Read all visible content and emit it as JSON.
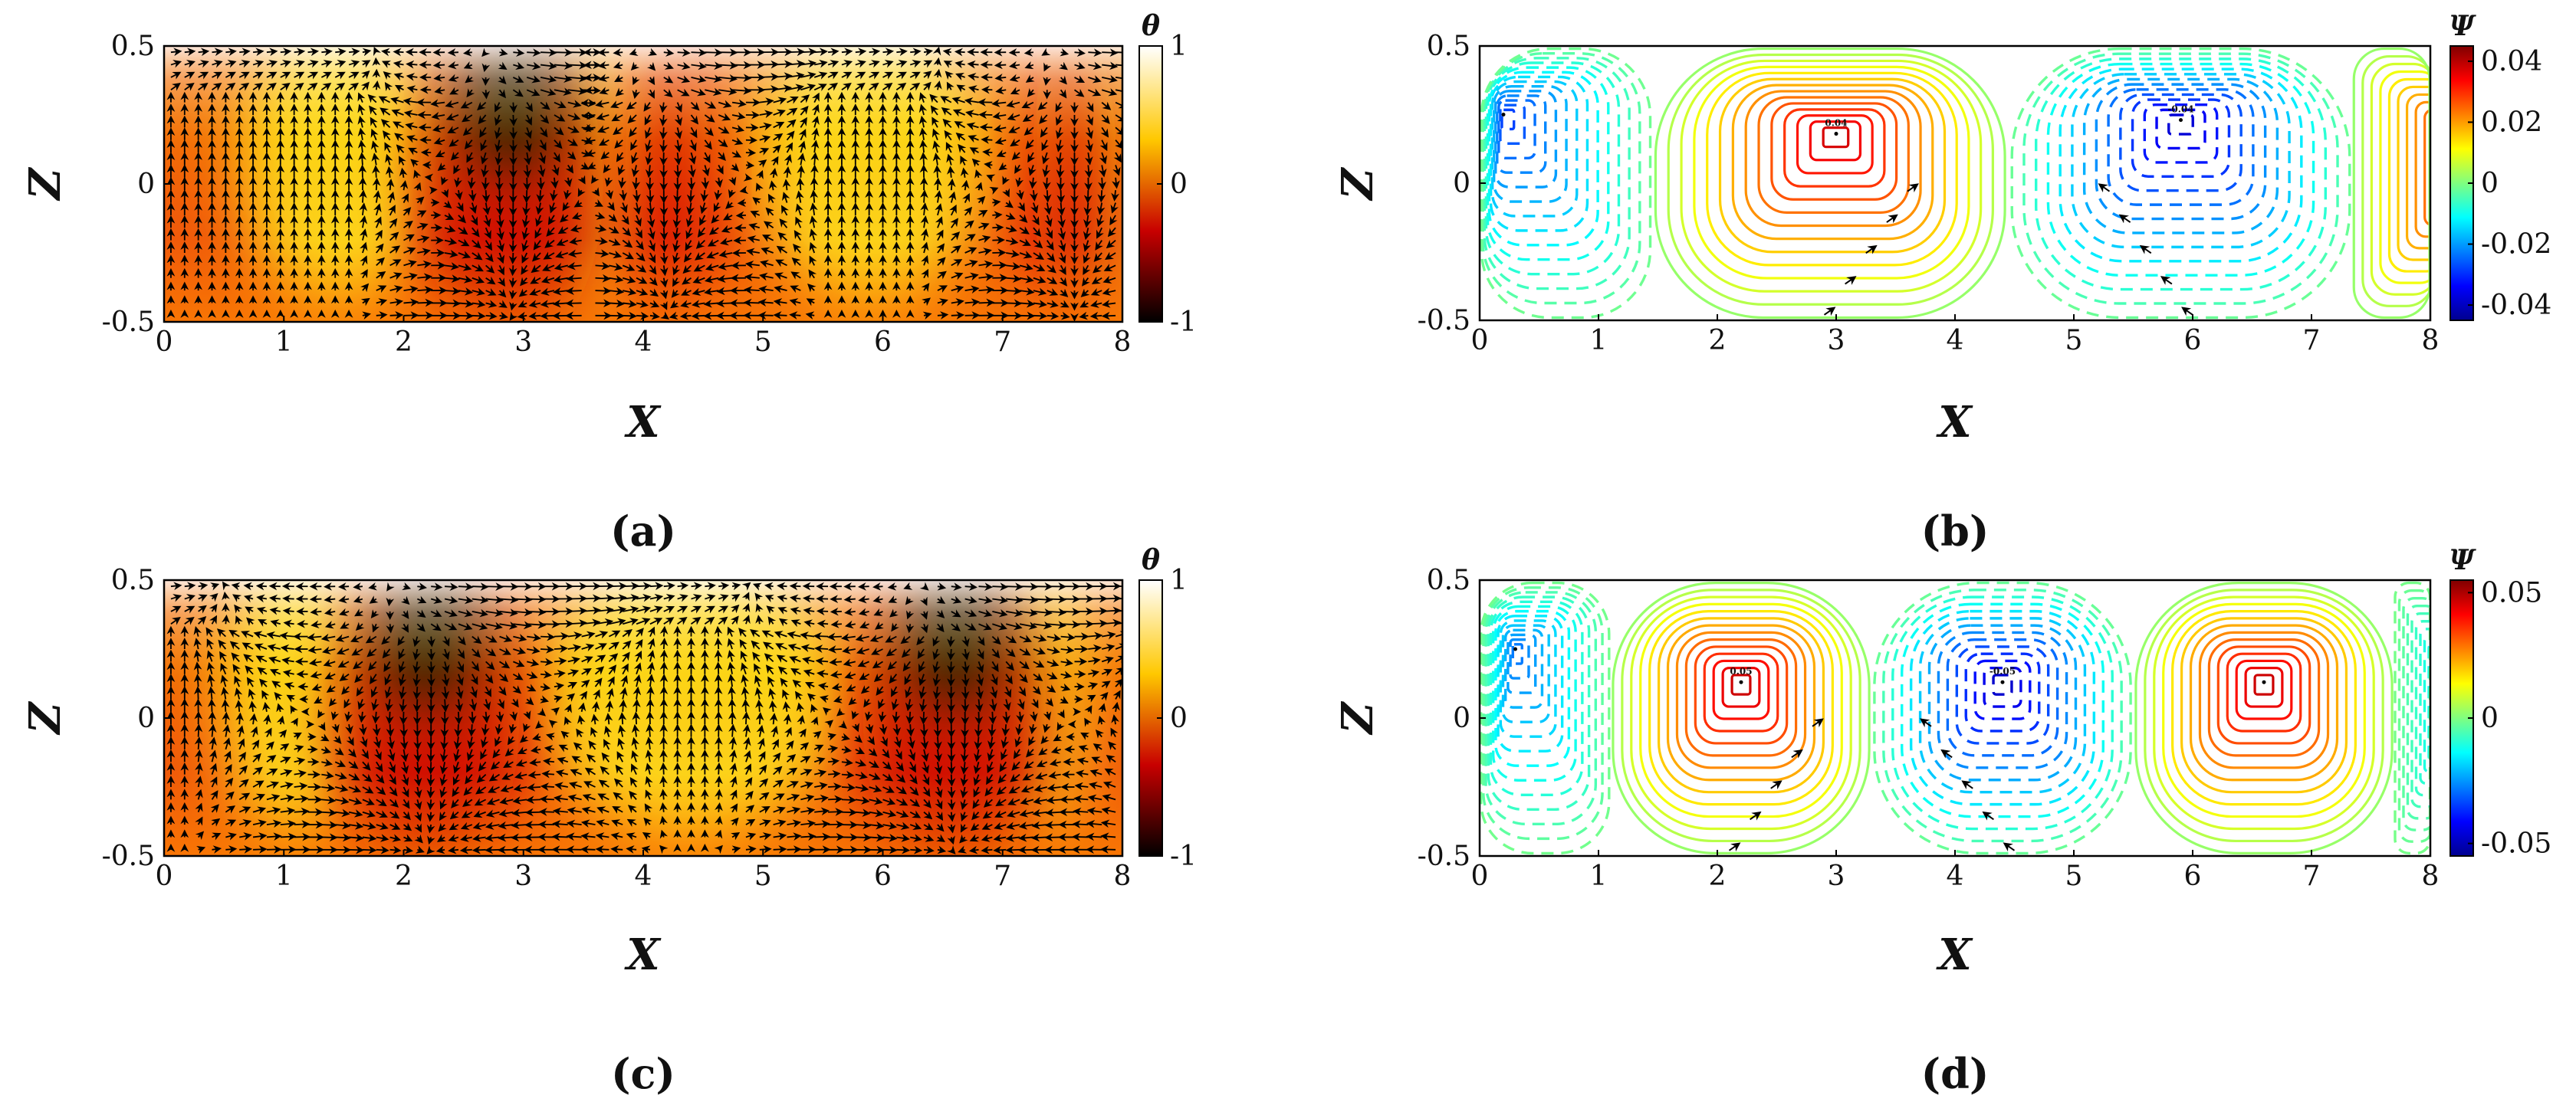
{
  "chart_data": [
    {
      "id": "a",
      "type": "heatmap",
      "field": "temperature_with_velocity_vectors",
      "panel_label": "(a)",
      "xlabel": "X",
      "ylabel": "Z",
      "xlim": [
        0,
        8
      ],
      "ylim": [
        -0.5,
        0.5
      ],
      "x_ticks": [
        "0",
        "1",
        "2",
        "3",
        "4",
        "5",
        "6",
        "7",
        "8"
      ],
      "y_ticks": [
        "0.5",
        "0",
        "-0.5"
      ],
      "colorbar": {
        "title": "θ",
        "range": [
          -1,
          1
        ],
        "ticks": [
          "1",
          "0",
          "-1"
        ],
        "colormap": "hot"
      },
      "cold_plume_centers_x": [
        2.9
      ],
      "secondary_plume_centers_x": [
        4.2,
        7.6
      ],
      "vectors": true
    },
    {
      "id": "b",
      "type": "contour",
      "field": "streamfunction",
      "panel_label": "(b)",
      "xlabel": "X",
      "ylabel": "Z",
      "xlim": [
        0,
        8
      ],
      "ylim": [
        -0.5,
        0.5
      ],
      "x_ticks": [
        "0",
        "1",
        "2",
        "3",
        "4",
        "5",
        "6",
        "7",
        "8"
      ],
      "y_ticks": [
        "0.5",
        "0",
        "-0.5"
      ],
      "colorbar": {
        "title": "Ψ",
        "range": [
          -0.045,
          0.045
        ],
        "ticks": [
          "0.04",
          "0.02",
          "0",
          "-0.02",
          "-0.04"
        ],
        "colormap": "jet"
      },
      "cells": [
        {
          "center_x": 3.0,
          "center_z": 0.18,
          "extremum": 0.04,
          "label": "0.04",
          "x_range": [
            1.45,
            4.45
          ]
        },
        {
          "center_x": 5.9,
          "center_z": 0.23,
          "extremum": -0.04,
          "label": "-0.04",
          "x_range": [
            4.45,
            7.35
          ]
        },
        {
          "center_x": 0.2,
          "center_z": 0.25,
          "extremum": -0.03,
          "label": "",
          "x_range": [
            0.0,
            1.45
          ]
        },
        {
          "center_x": 8.4,
          "center_z": 0.1,
          "extremum": 0.04,
          "label": "",
          "x_range": [
            7.35,
            8.0
          ]
        }
      ]
    },
    {
      "id": "c",
      "type": "heatmap",
      "field": "temperature_with_velocity_vectors",
      "panel_label": "(c)",
      "xlabel": "X",
      "ylabel": "Z",
      "xlim": [
        0,
        8
      ],
      "ylim": [
        -0.5,
        0.5
      ],
      "x_ticks": [
        "0",
        "1",
        "2",
        "3",
        "4",
        "5",
        "6",
        "7",
        "8"
      ],
      "y_ticks": [
        "0.5",
        "0",
        "-0.5"
      ],
      "colorbar": {
        "title": "θ",
        "range": [
          -1,
          1
        ],
        "ticks": [
          "1",
          "0",
          "-1"
        ],
        "colormap": "hot"
      },
      "cold_plume_centers_x": [
        2.2,
        6.6
      ],
      "secondary_plume_centers_x": [],
      "vectors": true
    },
    {
      "id": "d",
      "type": "contour",
      "field": "streamfunction",
      "panel_label": "(d)",
      "xlabel": "X",
      "ylabel": "Z",
      "xlim": [
        0,
        8
      ],
      "ylim": [
        -0.5,
        0.5
      ],
      "x_ticks": [
        "0",
        "1",
        "2",
        "3",
        "4",
        "5",
        "6",
        "7",
        "8"
      ],
      "y_ticks": [
        "0.5",
        "0",
        "-0.5"
      ],
      "colorbar": {
        "title": "Ψ",
        "range": [
          -0.055,
          0.055
        ],
        "ticks": [
          "0.05",
          "0",
          "-0.05"
        ],
        "colormap": "jet"
      },
      "cells": [
        {
          "center_x": 2.2,
          "center_z": 0.13,
          "extremum": 0.05,
          "label": "0.05",
          "x_range": [
            1.1,
            3.3
          ]
        },
        {
          "center_x": 4.4,
          "center_z": 0.13,
          "extremum": -0.05,
          "label": "-0.05",
          "x_range": [
            3.3,
            5.5
          ]
        },
        {
          "center_x": 6.6,
          "center_z": 0.13,
          "extremum": 0.05,
          "label": "",
          "x_range": [
            5.5,
            7.7
          ]
        },
        {
          "center_x": 0.3,
          "center_z": 0.25,
          "extremum": -0.03,
          "label": "",
          "x_range": [
            0.0,
            1.1
          ]
        },
        {
          "center_x": 8.2,
          "center_z": 0.1,
          "extremum": -0.02,
          "label": "",
          "x_range": [
            7.7,
            8.0
          ]
        }
      ]
    }
  ]
}
